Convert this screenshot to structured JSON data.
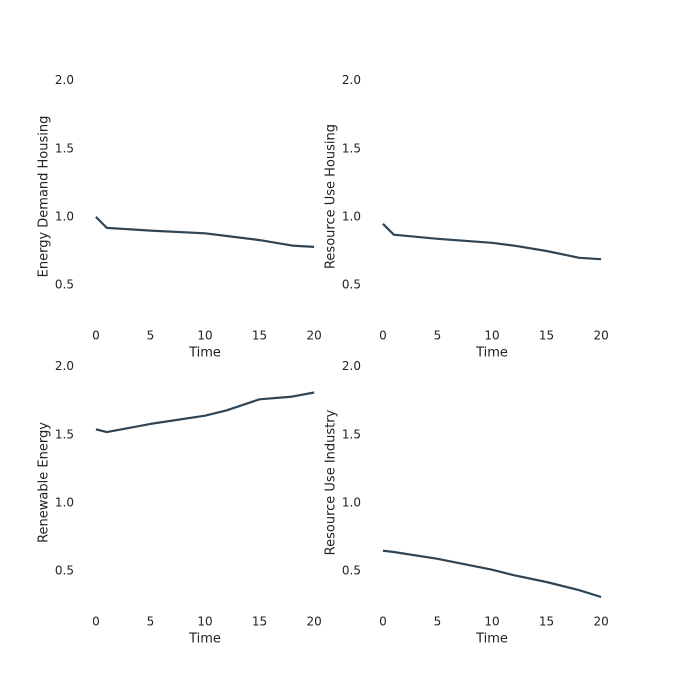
{
  "chart_data": [
    {
      "type": "line",
      "xlabel": "Time",
      "ylabel": "Energy Demand Housing",
      "x": [
        0,
        1,
        5,
        10,
        12,
        15,
        18,
        20
      ],
      "values": [
        1.0,
        0.92,
        0.9,
        0.88,
        0.86,
        0.83,
        0.79,
        0.78
      ],
      "color": "#2f4454",
      "xlim": [
        -1,
        21
      ],
      "ylim": [
        0.2,
        2.1
      ],
      "xticks": [
        0,
        5,
        10,
        15,
        20
      ],
      "yticks": [
        {
          "value": 0.5,
          "label": "0.5"
        },
        {
          "value": 1,
          "label": "1.0"
        },
        {
          "value": 1.5,
          "label": "1.5"
        },
        {
          "value": 2,
          "label": "2.0"
        }
      ]
    },
    {
      "type": "line",
      "xlabel": "Time",
      "ylabel": "Resource Use Housing",
      "x": [
        0,
        1,
        5,
        10,
        12,
        15,
        18,
        20
      ],
      "values": [
        0.95,
        0.87,
        0.84,
        0.81,
        0.79,
        0.75,
        0.7,
        0.69
      ],
      "color": "#2f4454",
      "xlim": [
        -1,
        21
      ],
      "ylim": [
        0.2,
        2.1
      ],
      "xticks": [
        0,
        5,
        10,
        15,
        20
      ],
      "yticks": [
        {
          "value": 0.5,
          "label": "0.5"
        },
        {
          "value": 1,
          "label": "1.0"
        },
        {
          "value": 1.5,
          "label": "1.5"
        },
        {
          "value": 2,
          "label": "2.0"
        }
      ]
    },
    {
      "type": "line",
      "xlabel": "Time",
      "ylabel": "Renewable Energy",
      "x": [
        0,
        1,
        5,
        10,
        12,
        15,
        18,
        20
      ],
      "values": [
        1.54,
        1.52,
        1.58,
        1.64,
        1.68,
        1.76,
        1.78,
        1.81
      ],
      "color": "#2f4454",
      "xlim": [
        -1,
        21
      ],
      "ylim": [
        0.2,
        2.1
      ],
      "xticks": [
        0,
        5,
        10,
        15,
        20
      ],
      "yticks": [
        {
          "value": 0.5,
          "label": "0.5"
        },
        {
          "value": 1,
          "label": "1.0"
        },
        {
          "value": 1.5,
          "label": "1.5"
        },
        {
          "value": 2,
          "label": "2.0"
        }
      ]
    },
    {
      "type": "line",
      "xlabel": "Time",
      "ylabel": "Resource Use Industry",
      "x": [
        0,
        1,
        5,
        10,
        12,
        15,
        18,
        20
      ],
      "values": [
        0.65,
        0.64,
        0.59,
        0.51,
        0.47,
        0.42,
        0.36,
        0.31
      ],
      "color": "#2f4454",
      "xlim": [
        -1,
        21
      ],
      "ylim": [
        0.2,
        2.1
      ],
      "xticks": [
        0,
        5,
        10,
        15,
        20
      ],
      "yticks": [
        {
          "value": 0.5,
          "label": "0.5"
        },
        {
          "value": 1,
          "label": "1.0"
        },
        {
          "value": 1.5,
          "label": "1.5"
        },
        {
          "value": 2,
          "label": "2.0"
        }
      ]
    }
  ]
}
